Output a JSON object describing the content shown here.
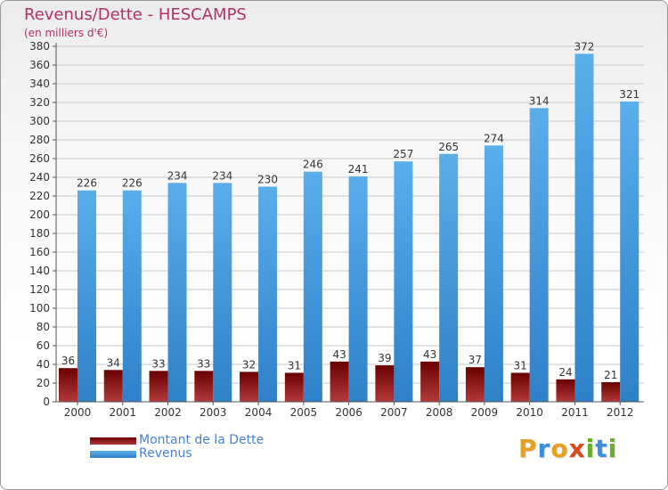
{
  "header": {
    "title": "Revenus/Dette - HESCAMPS",
    "subtitle": "(en milliers d'€)"
  },
  "logo": {
    "letters": [
      "P",
      "r",
      "o",
      "x",
      "i",
      "t",
      "i"
    ],
    "colors": [
      "#e8a020",
      "#3b8fd8",
      "#e8a020",
      "#d84a20",
      "#68b028",
      "#3b8fd8",
      "#68b028"
    ]
  },
  "colors": {
    "dette_top": "#6a0000",
    "dette_bottom": "#b23a3a",
    "revenus_top": "#5aaeea",
    "revenus_bottom": "#2f80c8",
    "grid": "#c8c8c8",
    "axis": "#555555",
    "text": "#333333"
  },
  "chart_data": {
    "type": "bar",
    "categories": [
      "2000",
      "2001",
      "2002",
      "2003",
      "2004",
      "2005",
      "2006",
      "2007",
      "2008",
      "2009",
      "2010",
      "2011",
      "2012"
    ],
    "series": [
      {
        "name": "Montant de la Dette",
        "values": [
          36,
          34,
          33,
          33,
          32,
          31,
          43,
          39,
          43,
          37,
          31,
          24,
          21
        ]
      },
      {
        "name": "Revenus",
        "values": [
          226,
          226,
          234,
          234,
          230,
          246,
          241,
          257,
          265,
          274,
          314,
          372,
          321
        ]
      }
    ],
    "yticks": [
      0,
      20,
      40,
      60,
      80,
      100,
      120,
      140,
      160,
      180,
      200,
      220,
      240,
      260,
      280,
      300,
      320,
      340,
      360,
      380
    ],
    "ylim": [
      0,
      380
    ],
    "grid": true,
    "legend": "bottom-left"
  }
}
